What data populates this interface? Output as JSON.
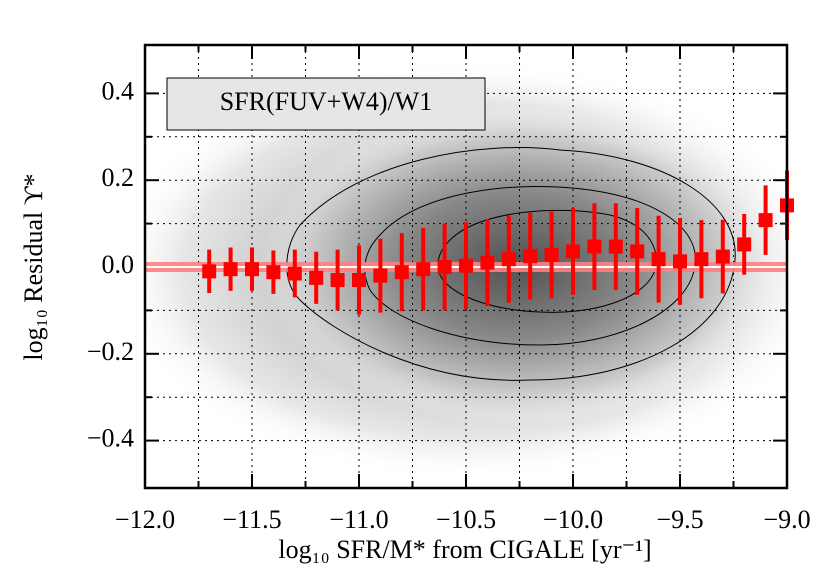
{
  "chart_data": {
    "type": "errorbar",
    "annotation": "SFR(FUV+W4)/W1",
    "x_label": "log₁₀ SFR/M* from CIGALE [yr⁻¹]",
    "y_label": "log₁₀ Residual ϒ*",
    "x": [
      -11.7,
      -11.6,
      -11.5,
      -11.4,
      -11.3,
      -11.2,
      -11.1,
      -11.0,
      -10.9,
      -10.8,
      -10.7,
      -10.6,
      -10.5,
      -10.4,
      -10.3,
      -10.2,
      -10.1,
      -10.0,
      -9.9,
      -9.8,
      -9.7,
      -9.6,
      -9.5,
      -9.4,
      -9.3,
      -9.2,
      -9.1,
      -9.0
    ],
    "values": [
      -0.01,
      -0.005,
      -0.005,
      -0.012,
      -0.015,
      -0.025,
      -0.03,
      -0.03,
      -0.02,
      -0.012,
      -0.005,
      0.0,
      0.003,
      0.01,
      0.018,
      0.025,
      0.028,
      0.036,
      0.047,
      0.047,
      0.036,
      0.018,
      0.013,
      0.018,
      0.024,
      0.052,
      0.108,
      0.142
    ],
    "errors": [
      0.05,
      0.05,
      0.05,
      0.05,
      0.055,
      0.06,
      0.07,
      0.08,
      0.085,
      0.09,
      0.095,
      0.1,
      0.1,
      0.1,
      0.1,
      0.1,
      0.1,
      0.1,
      0.1,
      0.1,
      0.1,
      0.1,
      0.1,
      0.09,
      0.085,
      0.07,
      0.08,
      0.08
    ],
    "color": "#ff0000",
    "reference_line": 0,
    "xlim": [
      -12,
      -9
    ],
    "ylim": [
      -0.5,
      0.5
    ],
    "xticks": [
      {
        "value": -12,
        "label": "−12.0"
      },
      {
        "value": -11.5,
        "label": "−11.5"
      },
      {
        "value": -11,
        "label": "−11.0"
      },
      {
        "value": -10.5,
        "label": "−10.5"
      },
      {
        "value": -10,
        "label": "−10.0"
      },
      {
        "value": -9.5,
        "label": "−9.5"
      },
      {
        "value": -9,
        "label": "−9.0"
      }
    ],
    "yticks": [
      {
        "value": -0.4,
        "label": "−0.4"
      },
      {
        "value": -0.2,
        "label": "−0.2"
      },
      {
        "value": 0,
        "label": "0.0"
      },
      0.2,
      0.4
    ],
    "xminorticks": [
      -11.75,
      -11.25,
      -10.75,
      -10.25,
      -9.75,
      -9.25
    ],
    "yminorticks": [
      -0.3,
      -0.1,
      0.1,
      0.3
    ],
    "grid": true
  }
}
